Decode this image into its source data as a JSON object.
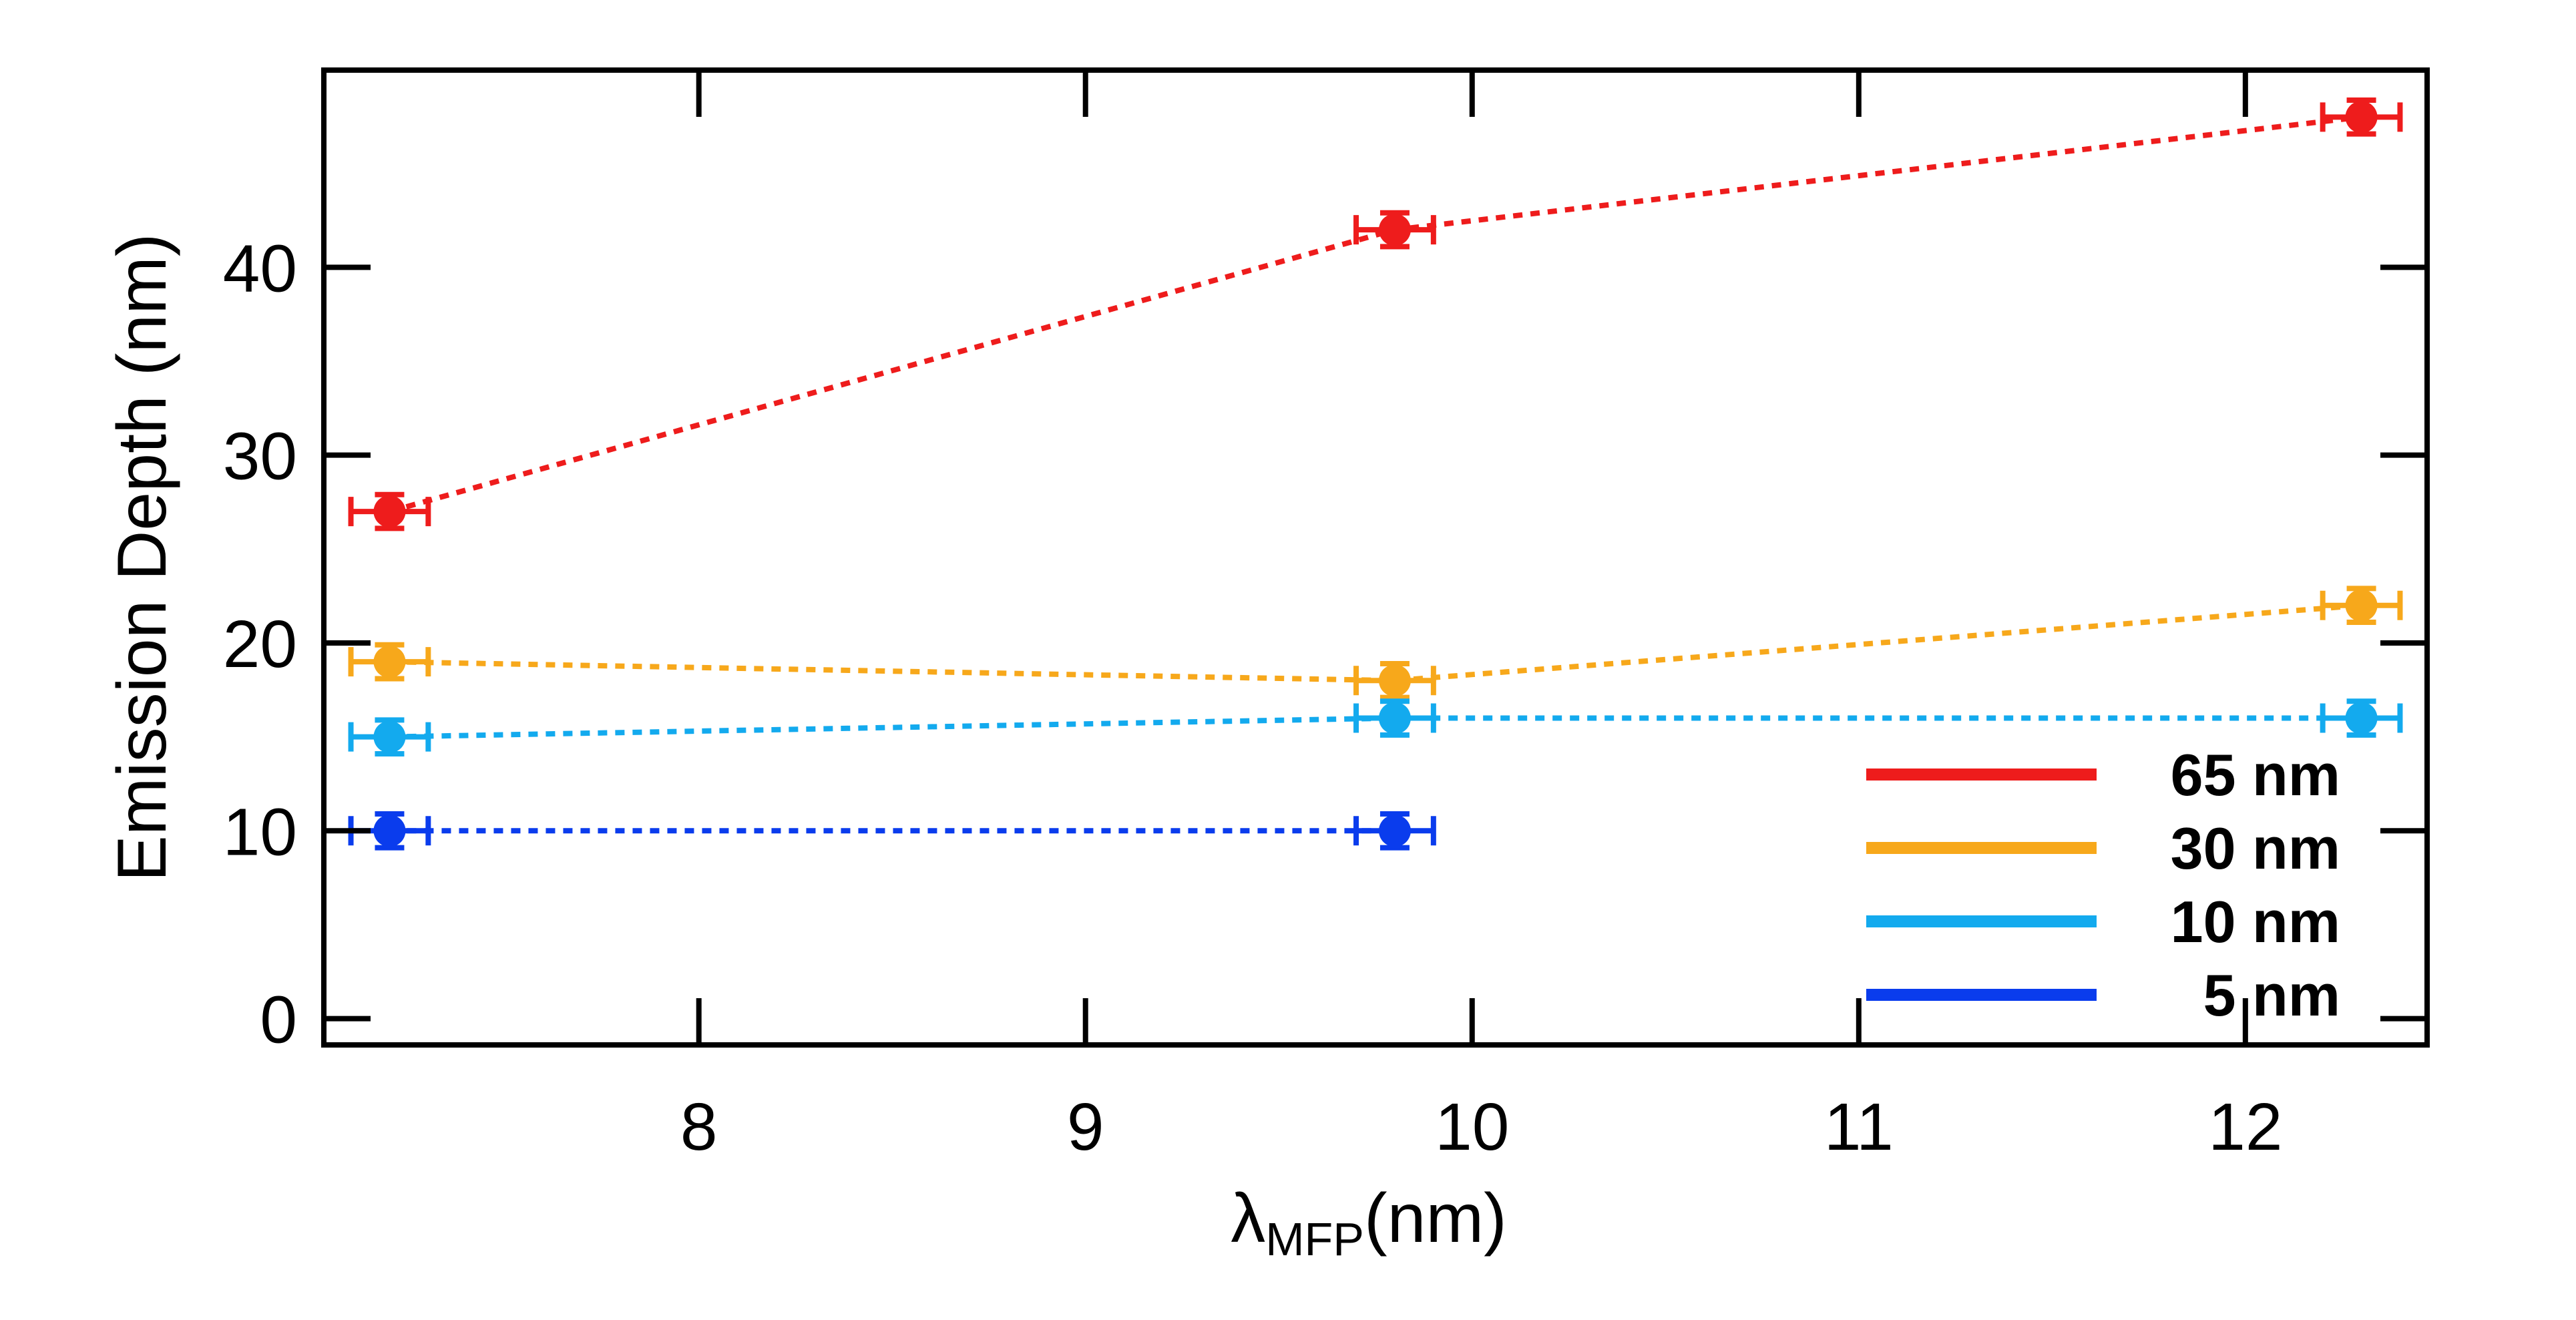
{
  "chart_data": {
    "type": "scatter",
    "title": "",
    "xlabel_main": "λ",
    "xlabel_sub": "MFP",
    "xlabel_unit": "(nm)",
    "ylabel": "Emission Depth (nm)",
    "xlim": [
      7.03,
      12.47
    ],
    "ylim": [
      -1.4,
      50.5
    ],
    "xticks": [
      8,
      9,
      10,
      11,
      12
    ],
    "yticks": [
      0,
      10,
      20,
      30,
      40
    ],
    "xtick_labels": [
      "8",
      "9",
      "10",
      "11",
      "12"
    ],
    "ytick_labels": [
      "0",
      "10",
      "20",
      "30",
      "40"
    ],
    "grid": false,
    "legend_position": "bottom-right",
    "line_style": "dotted",
    "series": [
      {
        "name": "65 nm",
        "legend_label": "65 nm",
        "color": "#ee1c1c",
        "x": [
          7.2,
          9.8,
          12.3
        ],
        "y": [
          27,
          42,
          48
        ],
        "xerr": [
          0.1,
          0.1,
          0.1
        ],
        "yerr": [
          0.9,
          0.9,
          0.9
        ]
      },
      {
        "name": "30 nm",
        "legend_label": "30 nm",
        "color": "#f7a81b",
        "x": [
          7.2,
          9.8,
          12.3
        ],
        "y": [
          19,
          18,
          22
        ],
        "xerr": [
          0.1,
          0.1,
          0.1
        ],
        "yerr": [
          0.9,
          0.9,
          0.9
        ]
      },
      {
        "name": "10 nm",
        "legend_label": "10 nm",
        "color": "#13aaee",
        "x": [
          7.2,
          9.8,
          12.3
        ],
        "y": [
          15,
          16,
          16
        ],
        "xerr": [
          0.1,
          0.1,
          0.1
        ],
        "yerr": [
          0.9,
          0.9,
          0.9
        ]
      },
      {
        "name": "5 nm",
        "legend_label": " 5 nm",
        "color": "#0a3ced",
        "x": [
          7.2,
          9.8
        ],
        "y": [
          10,
          10
        ],
        "xerr": [
          0.1,
          0.1
        ],
        "yerr": [
          0.9,
          0.9
        ]
      }
    ]
  }
}
